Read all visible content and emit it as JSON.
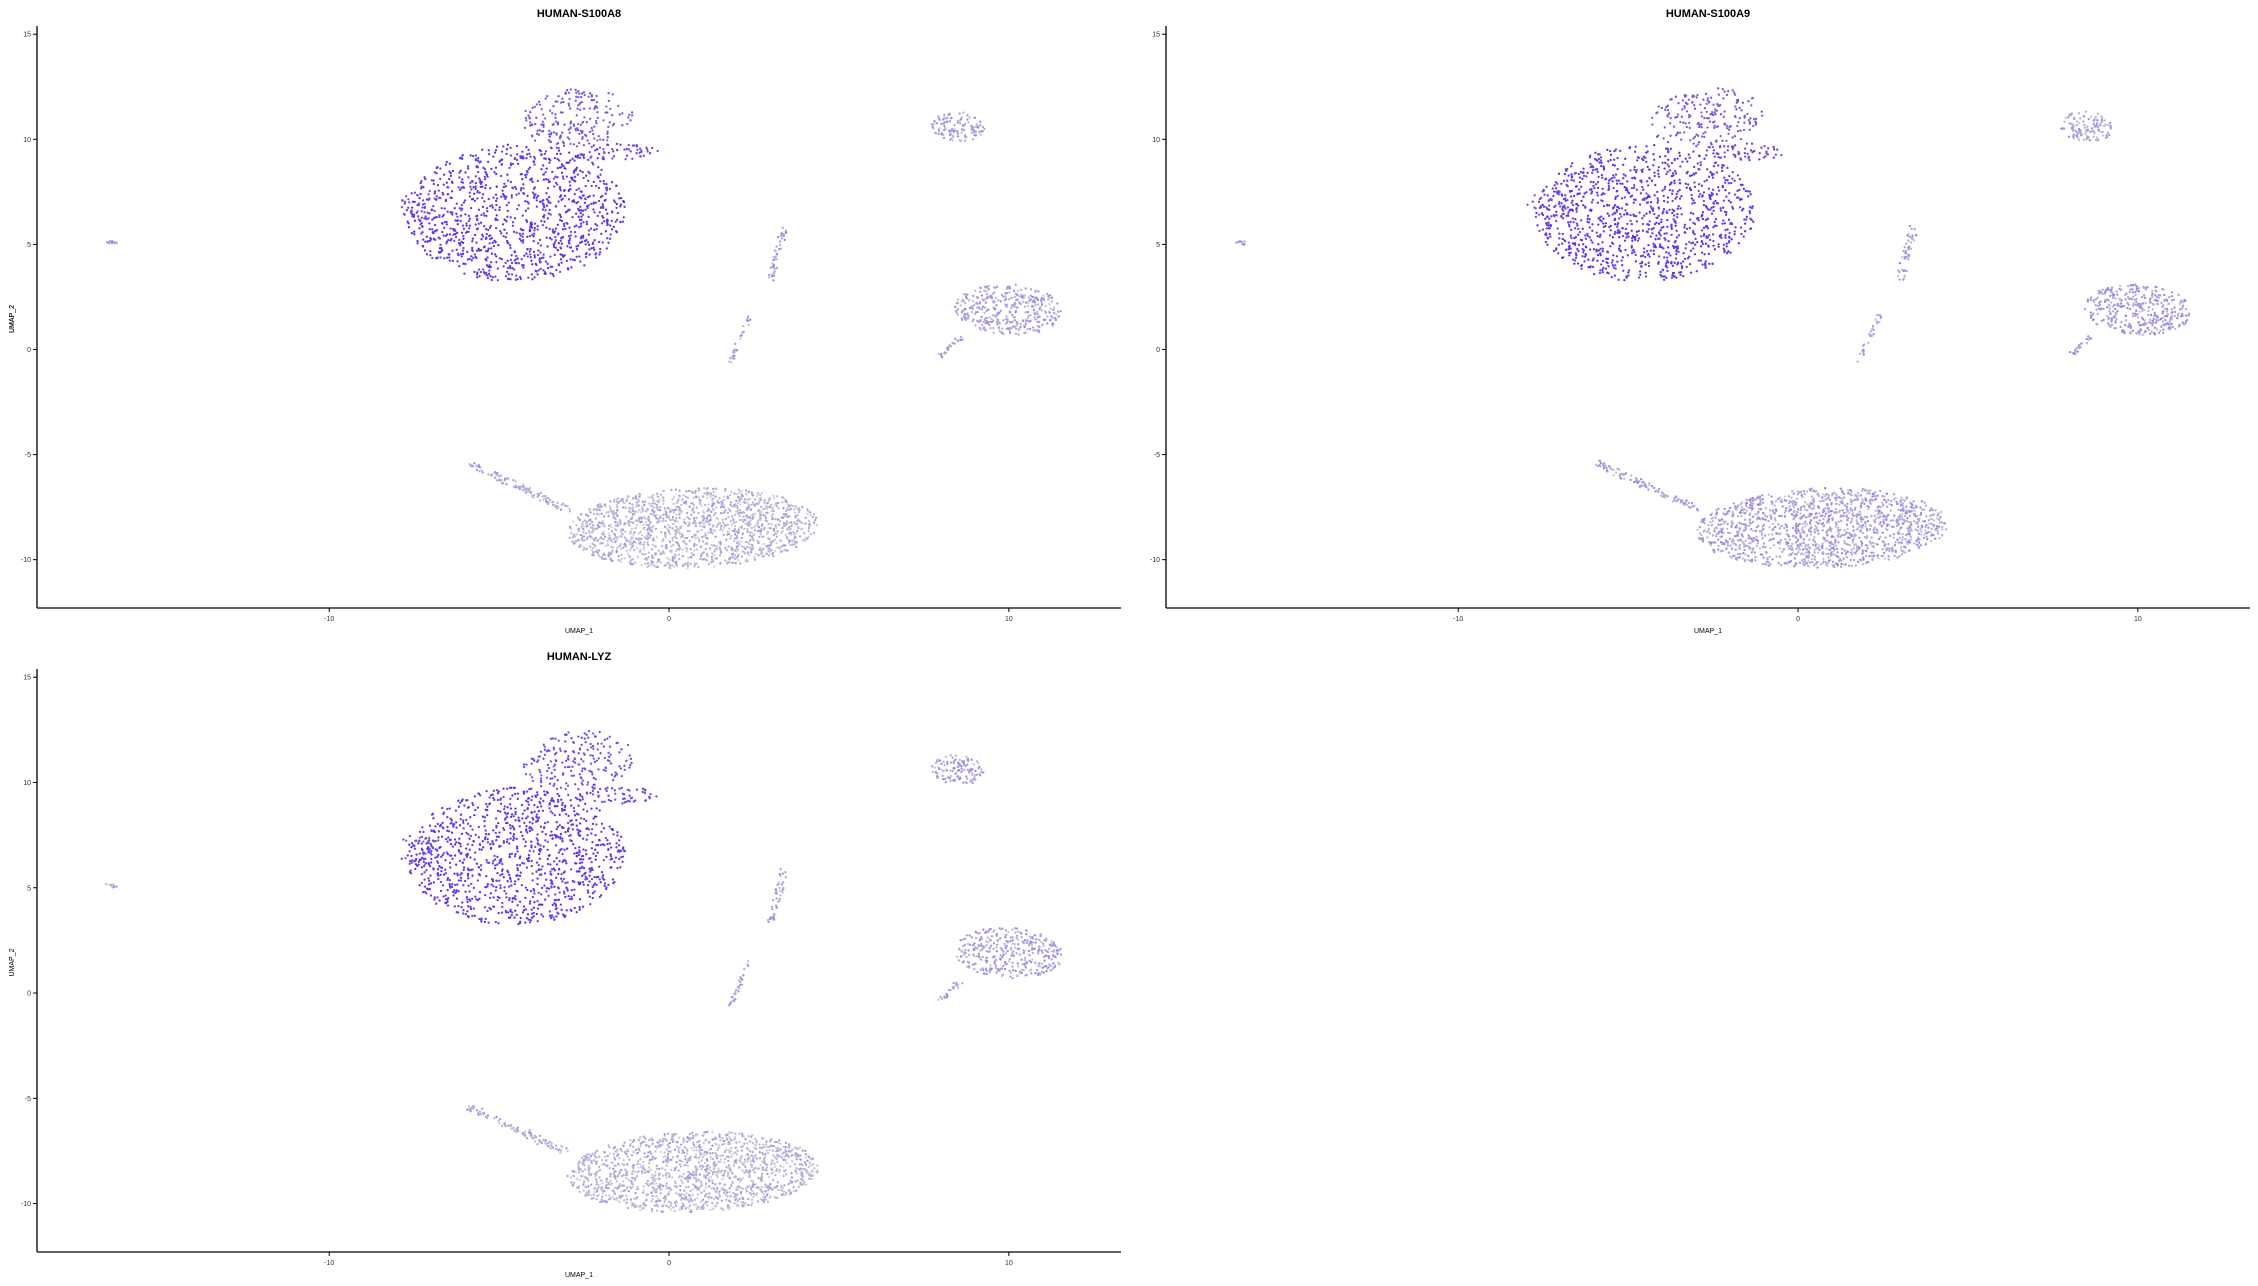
{
  "chart_data": [
    {
      "type": "scatter",
      "title": "HUMAN-S100A8",
      "xlabel": "UMAP_1",
      "ylabel": "UMAP_2",
      "xlim": [
        -18.6,
        13.3
      ],
      "ylim": [
        -12.3,
        15.2
      ],
      "xticks": [
        -10,
        0,
        10
      ],
      "yticks": [
        -10,
        -5,
        0,
        5,
        10,
        15
      ],
      "grid": false,
      "color_low": "#d3d3d3",
      "color_high": "#5b2cf0",
      "clusters": [
        {
          "x": -4.5,
          "y": 6.5,
          "expression": 0.95
        },
        {
          "x": -2.7,
          "y": 11.0,
          "expression": 0.75
        },
        {
          "x": -1.5,
          "y": 9.4,
          "expression": 0.85
        },
        {
          "x": -7.3,
          "y": 6.8,
          "expression": 0.8
        },
        {
          "x": -16.4,
          "y": 5.1,
          "expression": 0.3
        },
        {
          "x": 8.5,
          "y": 10.6,
          "expression": 0.3
        },
        {
          "x": 3.2,
          "y": 4.8,
          "expression": 0.35
        },
        {
          "x": 2.2,
          "y": 0.5,
          "expression": 0.3
        },
        {
          "x": 9.8,
          "y": 1.8,
          "expression": 0.3
        },
        {
          "x": 0.5,
          "y": -8.5,
          "expression": 0.2
        },
        {
          "x": -4.5,
          "y": -6.7,
          "expression": 0.25
        }
      ]
    },
    {
      "type": "scatter",
      "title": "HUMAN-S100A9",
      "xlabel": "UMAP_1",
      "ylabel": "UMAP_2",
      "xlim": [
        -18.6,
        13.3
      ],
      "ylim": [
        -12.3,
        15.2
      ],
      "xticks": [
        -10,
        0,
        10
      ],
      "yticks": [
        -10,
        -5,
        0,
        5,
        10,
        15
      ],
      "grid": false,
      "color_low": "#d3d3d3",
      "color_high": "#5b2cf0",
      "clusters": [
        {
          "x": -4.5,
          "y": 6.5,
          "expression": 0.95
        },
        {
          "x": -2.7,
          "y": 11.0,
          "expression": 0.75
        },
        {
          "x": -1.5,
          "y": 9.4,
          "expression": 0.85
        },
        {
          "x": -7.3,
          "y": 6.8,
          "expression": 0.8
        },
        {
          "x": -16.4,
          "y": 5.1,
          "expression": 0.3
        },
        {
          "x": 8.5,
          "y": 10.6,
          "expression": 0.3
        },
        {
          "x": 3.2,
          "y": 4.8,
          "expression": 0.35
        },
        {
          "x": 2.2,
          "y": 0.5,
          "expression": 0.3
        },
        {
          "x": 9.8,
          "y": 1.8,
          "expression": 0.35
        },
        {
          "x": 0.5,
          "y": -8.5,
          "expression": 0.3
        },
        {
          "x": -4.5,
          "y": -6.7,
          "expression": 0.3
        }
      ]
    },
    {
      "type": "scatter",
      "title": "HUMAN-LYZ",
      "xlabel": "UMAP_1",
      "ylabel": "UMAP_2",
      "xlim": [
        -18.6,
        13.3
      ],
      "ylim": [
        -12.3,
        15.2
      ],
      "xticks": [
        -10,
        0,
        10
      ],
      "yticks": [
        -10,
        -5,
        0,
        5,
        10,
        15
      ],
      "grid": false,
      "color_low": "#d3d3d3",
      "color_high": "#5b2cf0",
      "clusters": [
        {
          "x": -4.5,
          "y": 6.5,
          "expression": 0.95
        },
        {
          "x": -2.7,
          "y": 11.0,
          "expression": 0.8
        },
        {
          "x": -1.5,
          "y": 9.4,
          "expression": 0.85
        },
        {
          "x": -7.3,
          "y": 6.8,
          "expression": 0.8
        },
        {
          "x": -16.4,
          "y": 5.1,
          "expression": 0.3
        },
        {
          "x": 8.5,
          "y": 10.6,
          "expression": 0.3
        },
        {
          "x": 3.2,
          "y": 4.8,
          "expression": 0.3
        },
        {
          "x": 2.2,
          "y": 0.5,
          "expression": 0.3
        },
        {
          "x": 9.8,
          "y": 1.8,
          "expression": 0.3
        },
        {
          "x": 0.5,
          "y": -8.5,
          "expression": 0.2
        },
        {
          "x": -4.5,
          "y": -6.7,
          "expression": 0.25
        }
      ]
    }
  ]
}
